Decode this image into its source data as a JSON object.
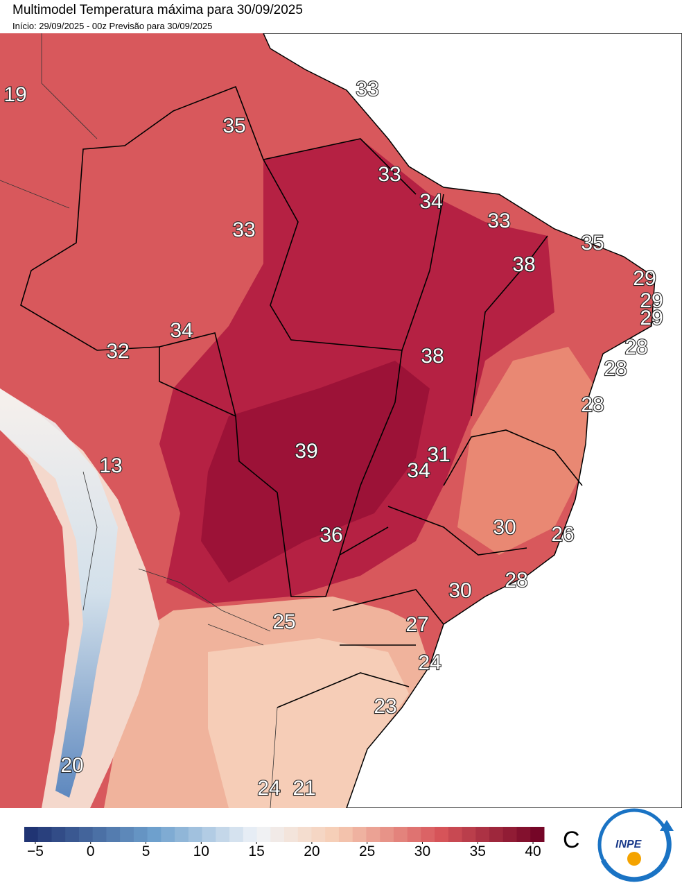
{
  "header": {
    "title": "Multimodel Temperatura máxima para 30/09/2025",
    "subtitle": "Início: 29/09/2025 - 00z  Previsão para 30/09/2025"
  },
  "map": {
    "labels": [
      "19",
      "33",
      "35",
      "33",
      "34",
      "33",
      "33",
      "35",
      "38",
      "29",
      "29",
      "29",
      "28",
      "34",
      "32",
      "38",
      "28",
      "28",
      "31",
      "39",
      "34",
      "13",
      "30",
      "26",
      "36",
      "28",
      "30",
      "25",
      "27",
      "24",
      "23",
      "20",
      "24",
      "21"
    ]
  },
  "colorbar": {
    "range": [
      -6,
      41
    ],
    "ticks": [
      {
        "value": -5,
        "label": "−5"
      },
      0,
      5,
      10,
      15,
      20,
      25,
      30,
      35,
      40
    ],
    "unit": "C"
  },
  "logo": {
    "text": "INPE"
  }
}
